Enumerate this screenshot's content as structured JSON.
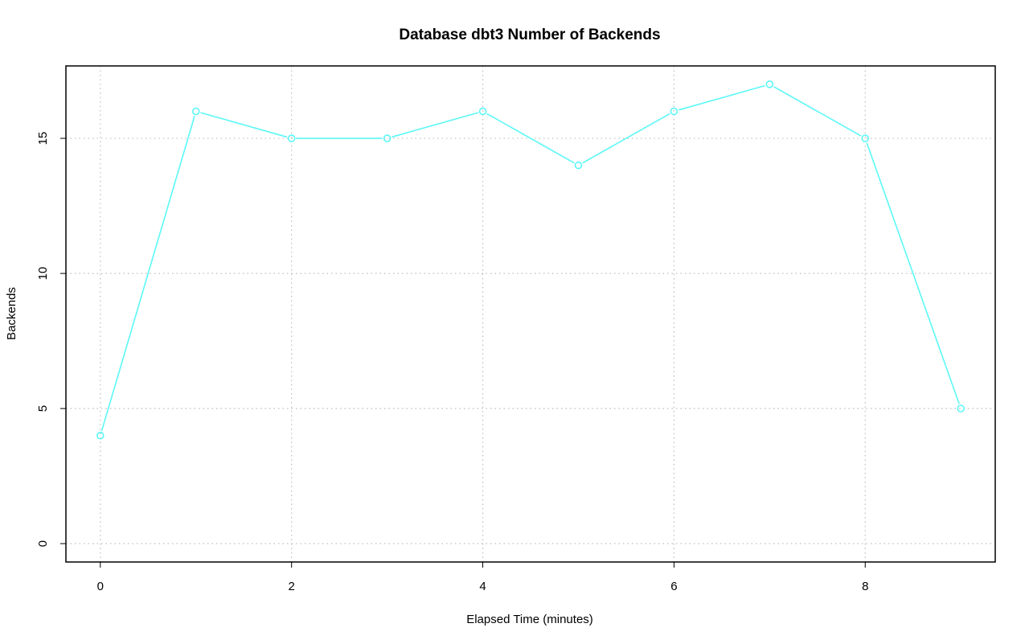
{
  "chart_data": {
    "type": "line",
    "title": "Database dbt3 Number of Backends",
    "xlabel": "Elapsed Time (minutes)",
    "ylabel": "Backends",
    "x": [
      0,
      1,
      2,
      3,
      4,
      5,
      6,
      7,
      8,
      9
    ],
    "series": [
      {
        "values": [
          4,
          16,
          15,
          15,
          16,
          14,
          16,
          17,
          15,
          5
        ]
      }
    ],
    "xlim": [
      -0.36,
      9.36
    ],
    "ylim": [
      -0.68,
      17.68
    ],
    "xticks": [
      0,
      2,
      4,
      6,
      8
    ],
    "yticks": [
      0,
      5,
      10,
      15
    ],
    "xtick_labels": [
      "0",
      "2",
      "4",
      "6",
      "8"
    ],
    "ytick_labels": [
      "0",
      "5",
      "10",
      "15"
    ],
    "grid": true,
    "line_color": "#5cf7f7",
    "grid_color": "#bdbdbd",
    "marker": "open-circle",
    "legend": "none"
  }
}
